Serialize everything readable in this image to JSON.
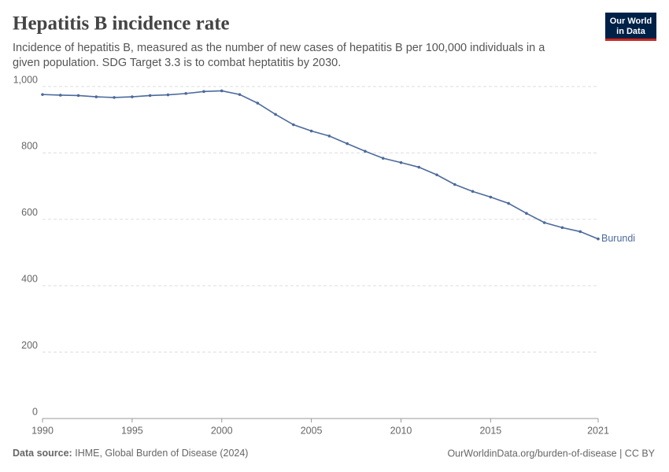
{
  "chart_data": {
    "type": "line",
    "title": "Hepatitis B incidence rate",
    "subtitle": [
      "Incidence of hepatitis B, measured as the number of new cases of hepatitis B per 100,000 individuals in a",
      "given population. SDG Target 3.3 is to combat heptatitis by 2030."
    ],
    "logo": [
      "Our World",
      "in Data"
    ],
    "source_label": "Data source:",
    "source": "IHME, Global Burden of Disease (2024)",
    "credit": "OurWorldinData.org/burden-of-disease | CC BY",
    "x": [
      1990,
      1991,
      1992,
      1993,
      1994,
      1995,
      1996,
      1997,
      1998,
      1999,
      2000,
      2001,
      2002,
      2003,
      2004,
      2005,
      2006,
      2007,
      2008,
      2009,
      2010,
      2011,
      2012,
      2013,
      2014,
      2015,
      2016,
      2017,
      2018,
      2019,
      2020,
      2021
    ],
    "series": [
      {
        "name": "Burundi",
        "color": "#4c6a9c",
        "values": [
          976,
          974,
          973,
          969,
          967,
          969,
          973,
          975,
          979,
          985,
          987,
          976,
          950,
          916,
          885,
          866,
          851,
          828,
          805,
          784,
          771,
          757,
          734,
          705,
          684,
          667,
          648,
          618,
          590,
          575,
          563,
          541
        ]
      }
    ],
    "xlim": [
      1990,
      2021
    ],
    "xticks": [
      1990,
      1995,
      2000,
      2005,
      2010,
      2015,
      2021
    ],
    "ylim": [
      0,
      1000
    ],
    "yticks": [
      0,
      200,
      400,
      600,
      800,
      {
        "value": 1000,
        "label": "1,000"
      }
    ],
    "grid": true
  }
}
